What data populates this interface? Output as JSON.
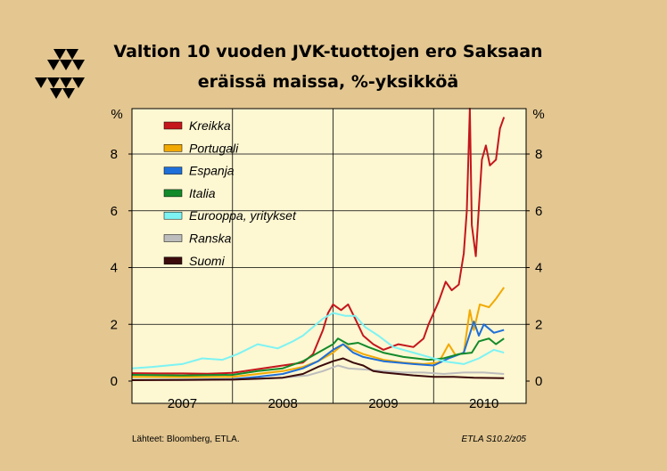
{
  "chart_data": {
    "type": "line",
    "title": "Valtion 10 vuoden JVK-tuottojen ero Saksaan",
    "subtitle": "eräissä maissa, %-yksikköä",
    "ylabel_left": "%",
    "ylabel_right": "%",
    "ylim": [
      0,
      10
    ],
    "xlim": [
      2006.5,
      2010.42
    ],
    "y_ticks": [
      "0",
      "2",
      "4",
      "6",
      "8"
    ],
    "x_ticks": [
      "2007",
      "2008",
      "2009",
      "2010"
    ],
    "grid": true,
    "legend_position": "top-left",
    "series": [
      {
        "name": "Kreikka",
        "color": "#c4161c",
        "points": [
          [
            2006.5,
            0.28
          ],
          [
            2006.75,
            0.27
          ],
          [
            2007.0,
            0.27
          ],
          [
            2007.25,
            0.26
          ],
          [
            2007.5,
            0.29
          ],
          [
            2007.75,
            0.42
          ],
          [
            2008.0,
            0.55
          ],
          [
            2008.2,
            0.65
          ],
          [
            2008.3,
            0.95
          ],
          [
            2008.4,
            1.8
          ],
          [
            2008.45,
            2.4
          ],
          [
            2008.5,
            2.7
          ],
          [
            2008.58,
            2.5
          ],
          [
            2008.65,
            2.7
          ],
          [
            2008.72,
            2.2
          ],
          [
            2008.8,
            1.6
          ],
          [
            2008.9,
            1.3
          ],
          [
            2009.0,
            1.1
          ],
          [
            2009.15,
            1.3
          ],
          [
            2009.3,
            1.2
          ],
          [
            2009.4,
            1.5
          ],
          [
            2009.45,
            2.0
          ],
          [
            2009.5,
            2.4
          ],
          [
            2009.55,
            2.8
          ],
          [
            2009.62,
            3.5
          ],
          [
            2009.68,
            3.2
          ],
          [
            2009.75,
            3.4
          ],
          [
            2009.8,
            4.5
          ],
          [
            2009.83,
            6.0
          ],
          [
            2009.86,
            9.6
          ],
          [
            2009.88,
            5.5
          ],
          [
            2009.92,
            4.4
          ],
          [
            2009.98,
            7.8
          ],
          [
            2010.02,
            8.3
          ],
          [
            2010.06,
            7.6
          ],
          [
            2010.12,
            7.8
          ],
          [
            2010.16,
            8.9
          ],
          [
            2010.2,
            9.3
          ]
        ]
      },
      {
        "name": "Portugali",
        "color": "#f2a900",
        "points": [
          [
            2006.5,
            0.15
          ],
          [
            2007.0,
            0.14
          ],
          [
            2007.5,
            0.15
          ],
          [
            2007.75,
            0.25
          ],
          [
            2008.0,
            0.35
          ],
          [
            2008.2,
            0.5
          ],
          [
            2008.35,
            0.7
          ],
          [
            2008.5,
            1.0
          ],
          [
            2008.6,
            1.3
          ],
          [
            2008.7,
            1.1
          ],
          [
            2008.8,
            0.95
          ],
          [
            2009.0,
            0.75
          ],
          [
            2009.2,
            0.65
          ],
          [
            2009.4,
            0.6
          ],
          [
            2009.55,
            0.65
          ],
          [
            2009.65,
            1.3
          ],
          [
            2009.72,
            0.9
          ],
          [
            2009.8,
            1.0
          ],
          [
            2009.86,
            2.5
          ],
          [
            2009.9,
            1.8
          ],
          [
            2009.96,
            2.7
          ],
          [
            2010.05,
            2.6
          ],
          [
            2010.12,
            2.9
          ],
          [
            2010.2,
            3.3
          ]
        ]
      },
      {
        "name": "Espanja",
        "color": "#1e6fd9",
        "points": [
          [
            2006.5,
            0.05
          ],
          [
            2007.0,
            0.05
          ],
          [
            2007.5,
            0.07
          ],
          [
            2007.75,
            0.15
          ],
          [
            2008.0,
            0.25
          ],
          [
            2008.2,
            0.45
          ],
          [
            2008.35,
            0.7
          ],
          [
            2008.5,
            1.1
          ],
          [
            2008.6,
            1.3
          ],
          [
            2008.7,
            1.0
          ],
          [
            2008.8,
            0.85
          ],
          [
            2009.0,
            0.7
          ],
          [
            2009.3,
            0.6
          ],
          [
            2009.5,
            0.55
          ],
          [
            2009.65,
            0.8
          ],
          [
            2009.8,
            1.0
          ],
          [
            2009.9,
            2.1
          ],
          [
            2009.95,
            1.6
          ],
          [
            2010.0,
            2.0
          ],
          [
            2010.1,
            1.7
          ],
          [
            2010.2,
            1.8
          ]
        ]
      },
      {
        "name": "Italia",
        "color": "#138a2a",
        "points": [
          [
            2006.5,
            0.22
          ],
          [
            2007.0,
            0.2
          ],
          [
            2007.5,
            0.22
          ],
          [
            2007.75,
            0.35
          ],
          [
            2008.0,
            0.45
          ],
          [
            2008.2,
            0.7
          ],
          [
            2008.35,
            1.0
          ],
          [
            2008.5,
            1.3
          ],
          [
            2008.55,
            1.5
          ],
          [
            2008.65,
            1.3
          ],
          [
            2008.75,
            1.35
          ],
          [
            2008.85,
            1.2
          ],
          [
            2009.0,
            1.0
          ],
          [
            2009.2,
            0.85
          ],
          [
            2009.45,
            0.75
          ],
          [
            2009.6,
            0.8
          ],
          [
            2009.75,
            0.95
          ],
          [
            2009.88,
            1.0
          ],
          [
            2009.95,
            1.4
          ],
          [
            2010.05,
            1.5
          ],
          [
            2010.12,
            1.3
          ],
          [
            2010.2,
            1.5
          ]
        ]
      },
      {
        "name": "Eurooppa, yritykset",
        "color": "#7df3f3",
        "points": [
          [
            2006.5,
            0.45
          ],
          [
            2006.7,
            0.5
          ],
          [
            2007.0,
            0.6
          ],
          [
            2007.2,
            0.8
          ],
          [
            2007.4,
            0.75
          ],
          [
            2007.55,
            0.95
          ],
          [
            2007.75,
            1.3
          ],
          [
            2007.95,
            1.15
          ],
          [
            2008.1,
            1.4
          ],
          [
            2008.2,
            1.6
          ],
          [
            2008.3,
            1.9
          ],
          [
            2008.4,
            2.2
          ],
          [
            2008.5,
            2.4
          ],
          [
            2008.62,
            2.3
          ],
          [
            2008.72,
            2.3
          ],
          [
            2008.82,
            1.9
          ],
          [
            2008.95,
            1.6
          ],
          [
            2009.1,
            1.2
          ],
          [
            2009.3,
            1.0
          ],
          [
            2009.5,
            0.8
          ],
          [
            2009.6,
            0.7
          ],
          [
            2009.8,
            0.6
          ],
          [
            2009.95,
            0.8
          ],
          [
            2010.1,
            1.1
          ],
          [
            2010.2,
            1.0
          ]
        ]
      },
      {
        "name": "Ranska",
        "color": "#bdbdbd",
        "points": [
          [
            2006.5,
            0.05
          ],
          [
            2007.0,
            0.04
          ],
          [
            2007.5,
            0.05
          ],
          [
            2007.75,
            0.08
          ],
          [
            2008.0,
            0.12
          ],
          [
            2008.25,
            0.2
          ],
          [
            2008.4,
            0.35
          ],
          [
            2008.55,
            0.55
          ],
          [
            2008.65,
            0.45
          ],
          [
            2008.85,
            0.4
          ],
          [
            2009.0,
            0.35
          ],
          [
            2009.2,
            0.3
          ],
          [
            2009.4,
            0.3
          ],
          [
            2009.6,
            0.25
          ],
          [
            2009.8,
            0.3
          ],
          [
            2010.0,
            0.3
          ],
          [
            2010.2,
            0.25
          ]
        ]
      },
      {
        "name": "Suomi",
        "color": "#3b0a0a",
        "points": [
          [
            2006.5,
            0.03
          ],
          [
            2007.0,
            0.04
          ],
          [
            2007.5,
            0.05
          ],
          [
            2007.75,
            0.08
          ],
          [
            2008.0,
            0.12
          ],
          [
            2008.2,
            0.25
          ],
          [
            2008.35,
            0.5
          ],
          [
            2008.5,
            0.7
          ],
          [
            2008.6,
            0.8
          ],
          [
            2008.7,
            0.65
          ],
          [
            2008.8,
            0.55
          ],
          [
            2008.9,
            0.35
          ],
          [
            2009.0,
            0.3
          ],
          [
            2009.15,
            0.25
          ],
          [
            2009.3,
            0.2
          ],
          [
            2009.5,
            0.15
          ],
          [
            2009.7,
            0.15
          ],
          [
            2009.9,
            0.12
          ],
          [
            2010.2,
            0.1
          ]
        ]
      }
    ]
  },
  "footer": {
    "source": "Lähteet:   Bloomberg, ETLA.",
    "code": "ETLA S10.2/z05"
  }
}
